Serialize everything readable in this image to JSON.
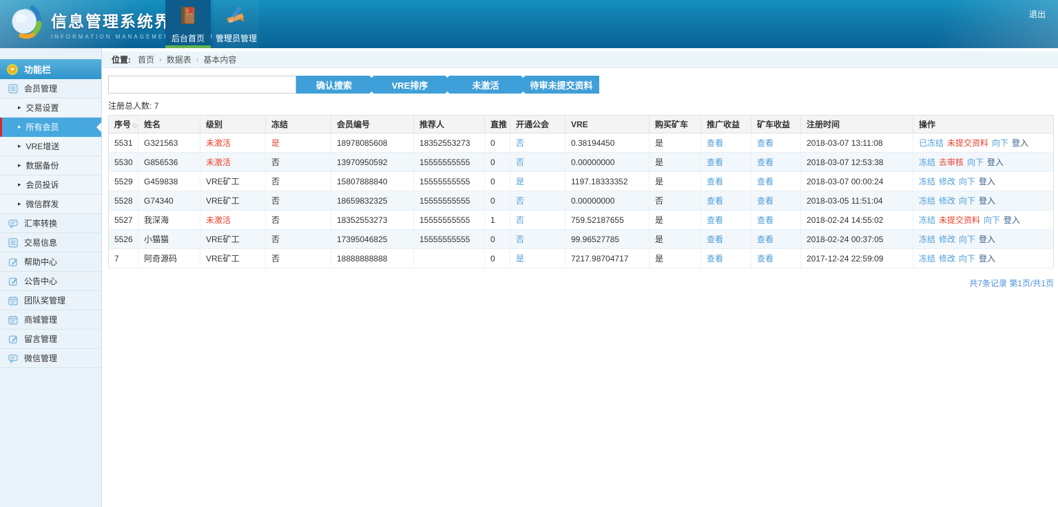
{
  "app": {
    "title": "信息管理系统界面",
    "subtitle": "INFORMATION MANAGEMENT SYSTEM GUI",
    "logout": "退出",
    "tabs": [
      {
        "label": "后台首页",
        "icon": "notebook-icon",
        "active": true
      },
      {
        "label": "管理员管理",
        "icon": "admin-tools-icon",
        "active": false
      }
    ]
  },
  "sidebar": {
    "title": "功能栏",
    "items": [
      {
        "label": "会员管理",
        "icon": "list-icon",
        "type": "group"
      },
      {
        "label": "交易设置",
        "type": "sub"
      },
      {
        "label": "所有会员",
        "type": "sub",
        "active": true
      },
      {
        "label": "VRE增送",
        "type": "sub"
      },
      {
        "label": "数据备份",
        "type": "sub"
      },
      {
        "label": "会员投诉",
        "type": "sub"
      },
      {
        "label": "微信群发",
        "type": "sub"
      },
      {
        "label": "汇率转换",
        "icon": "chat-icon",
        "type": "group"
      },
      {
        "label": "交易信息",
        "icon": "list-icon",
        "type": "group"
      },
      {
        "label": "帮助中心",
        "icon": "edit-icon",
        "type": "group"
      },
      {
        "label": "公告中心",
        "icon": "edit-icon",
        "type": "group"
      },
      {
        "label": "团队奖管理",
        "icon": "calendar-icon",
        "type": "group"
      },
      {
        "label": "商城管理",
        "icon": "calendar-icon",
        "type": "group"
      },
      {
        "label": "留言管理",
        "icon": "edit-icon",
        "type": "group"
      },
      {
        "label": "微信管理",
        "icon": "chat-icon",
        "type": "group"
      }
    ]
  },
  "breadcrumb": {
    "prefix": "位置:",
    "items": [
      "首页",
      "数据表",
      "基本内容"
    ]
  },
  "toolbar": {
    "search_value": "",
    "buttons": [
      "确认搜索",
      "VRE排序",
      "未激活",
      "待审未提交资料"
    ]
  },
  "summary": {
    "label": "注册总人数:",
    "value": "7"
  },
  "table": {
    "sort_icon": "◇",
    "columns": [
      "序号",
      "姓名",
      "级别",
      "冻结",
      "会员编号",
      "推荐人",
      "直推",
      "开通公会",
      "VRE",
      "购买矿车",
      "推广收益",
      "矿车收益",
      "注册时间",
      "操作"
    ],
    "rows": [
      {
        "id": "5531",
        "name": "G321563",
        "level": "未激活",
        "level_style": "red",
        "frozen": "是",
        "frozen_style": "red",
        "member_no": "18978085608",
        "referrer": "18352553273",
        "direct": "0",
        "guild": "否",
        "vre": "0.38194450",
        "cart": "是",
        "promo": "查看",
        "income": "查看",
        "reg_time": "2018-03-07 13:11:08",
        "actions": [
          {
            "label": "已冻结",
            "style": "blue"
          },
          {
            "label": "未提交资料",
            "style": "red"
          },
          {
            "label": "向下",
            "style": "blue"
          },
          {
            "label": "登入",
            "style": "dark"
          }
        ]
      },
      {
        "id": "5530",
        "name": "G856536",
        "level": "未激活",
        "level_style": "red",
        "frozen": "否",
        "frozen_style": "",
        "member_no": "13970950592",
        "referrer": "15555555555",
        "direct": "0",
        "guild": "否",
        "vre": "0.00000000",
        "cart": "是",
        "promo": "查看",
        "income": "查看",
        "reg_time": "2018-03-07 12:53:38",
        "actions": [
          {
            "label": "冻结",
            "style": "blue"
          },
          {
            "label": "去审核",
            "style": "red"
          },
          {
            "label": "向下",
            "style": "blue"
          },
          {
            "label": "登入",
            "style": "dark"
          }
        ]
      },
      {
        "id": "5529",
        "name": "G459838",
        "level": "VRE矿工",
        "level_style": "",
        "frozen": "否",
        "frozen_style": "",
        "member_no": "15807888840",
        "referrer": "15555555555",
        "direct": "0",
        "guild": "是",
        "vre": "1197.18333352",
        "cart": "是",
        "promo": "查看",
        "income": "查看",
        "reg_time": "2018-03-07 00:00:24",
        "actions": [
          {
            "label": "冻结",
            "style": "blue"
          },
          {
            "label": "修改",
            "style": "blue"
          },
          {
            "label": "向下",
            "style": "blue"
          },
          {
            "label": "登入",
            "style": "dark"
          }
        ]
      },
      {
        "id": "5528",
        "name": "G74340",
        "level": "VRE矿工",
        "level_style": "",
        "frozen": "否",
        "frozen_style": "",
        "member_no": "18659832325",
        "referrer": "15555555555",
        "direct": "0",
        "guild": "否",
        "vre": "0.00000000",
        "cart": "否",
        "promo": "查看",
        "income": "查看",
        "reg_time": "2018-03-05 11:51:04",
        "actions": [
          {
            "label": "冻结",
            "style": "blue"
          },
          {
            "label": "修改",
            "style": "blue"
          },
          {
            "label": "向下",
            "style": "blue"
          },
          {
            "label": "登入",
            "style": "dark"
          }
        ]
      },
      {
        "id": "5527",
        "name": "我深海",
        "level": "未激活",
        "level_style": "red",
        "frozen": "否",
        "frozen_style": "",
        "member_no": "18352553273",
        "referrer": "15555555555",
        "direct": "1",
        "guild": "否",
        "vre": "759.52187655",
        "cart": "是",
        "promo": "查看",
        "income": "查看",
        "reg_time": "2018-02-24 14:55:02",
        "actions": [
          {
            "label": "冻结",
            "style": "blue"
          },
          {
            "label": "未提交资料",
            "style": "red"
          },
          {
            "label": "向下",
            "style": "blue"
          },
          {
            "label": "登入",
            "style": "dark"
          }
        ]
      },
      {
        "id": "5526",
        "name": "小猫猫",
        "level": "VRE矿工",
        "level_style": "",
        "frozen": "否",
        "frozen_style": "",
        "member_no": "17395046825",
        "referrer": "15555555555",
        "direct": "0",
        "guild": "否",
        "vre": "99.96527785",
        "cart": "是",
        "promo": "查看",
        "income": "查看",
        "reg_time": "2018-02-24 00:37:05",
        "actions": [
          {
            "label": "冻结",
            "style": "blue"
          },
          {
            "label": "修改",
            "style": "blue"
          },
          {
            "label": "向下",
            "style": "blue"
          },
          {
            "label": "登入",
            "style": "dark"
          }
        ]
      },
      {
        "id": "7",
        "name": "阿奇源码",
        "level": "VRE矿工",
        "level_style": "",
        "frozen": "否",
        "frozen_style": "",
        "member_no": "18888888888",
        "referrer": "",
        "direct": "0",
        "guild": "是",
        "vre": "7217.98704717",
        "cart": "是",
        "promo": "查看",
        "income": "查看",
        "reg_time": "2017-12-24 22:59:09",
        "actions": [
          {
            "label": "冻结",
            "style": "blue"
          },
          {
            "label": "修改",
            "style": "blue"
          },
          {
            "label": "向下",
            "style": "blue"
          },
          {
            "label": "登入",
            "style": "dark"
          }
        ]
      }
    ]
  },
  "pagination": {
    "text": "共7条记录 第1页/共1页"
  }
}
